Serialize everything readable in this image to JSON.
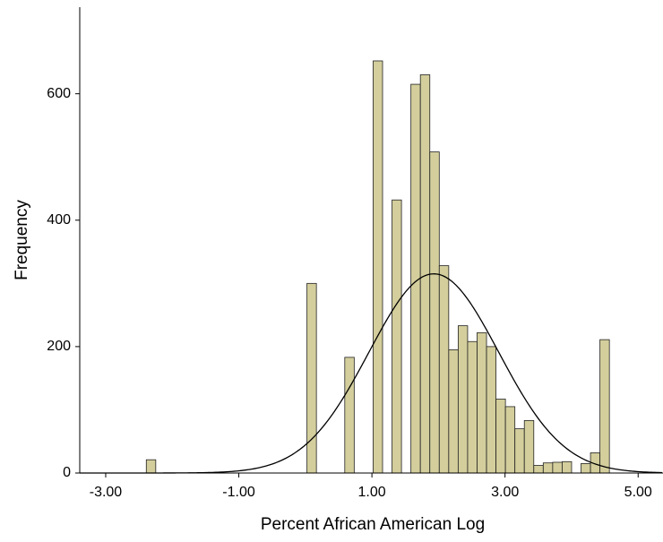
{
  "chart_data": {
    "type": "histogram",
    "x_label": "Percent African American Log",
    "y_label": "Frequency",
    "bins": [
      -2.39,
      -2.248,
      -2.106,
      -1.964,
      -1.822,
      -1.68,
      -1.538,
      -1.396,
      -1.254,
      -1.112,
      -0.97,
      -0.828,
      -0.686,
      -0.544,
      -0.402,
      -0.26,
      -0.118,
      0.024,
      0.166,
      0.308,
      0.45,
      0.592,
      0.734,
      0.876,
      1.018,
      1.16,
      1.302,
      1.444,
      1.586,
      1.728,
      1.87,
      2.012,
      2.154,
      2.296,
      2.438,
      2.58,
      2.722,
      2.864,
      3.006,
      3.148,
      3.29,
      3.432,
      3.574,
      3.716,
      3.858,
      4.0,
      4.142,
      4.284,
      4.426,
      4.568
    ],
    "values": [
      21,
      0,
      0,
      0,
      0,
      0,
      0,
      0,
      0,
      0,
      0,
      0,
      0,
      0,
      0,
      0,
      0,
      300,
      0,
      0,
      0,
      183,
      0,
      0,
      652,
      0,
      432,
      0,
      615,
      630,
      508,
      328,
      195,
      233,
      208,
      222,
      200,
      117,
      105,
      70,
      83,
      12,
      16,
      17,
      18,
      0,
      15,
      32,
      211
    ],
    "color": "#d3ce9c",
    "normal_curve": {
      "mean": 1.93,
      "sd": 0.975
    },
    "xlim": [
      -3.39,
      5.36
    ],
    "xticks": [
      {
        "value": -3,
        "label": "-3.00"
      },
      {
        "value": -1,
        "label": "-1.00"
      },
      {
        "value": 1,
        "label": "1.00"
      },
      {
        "value": 3,
        "label": "3.00"
      },
      {
        "value": 5,
        "label": "5.00"
      }
    ],
    "ylim": [
      0,
      737
    ],
    "yticks": [
      0,
      200,
      400,
      600
    ],
    "grid": false
  }
}
